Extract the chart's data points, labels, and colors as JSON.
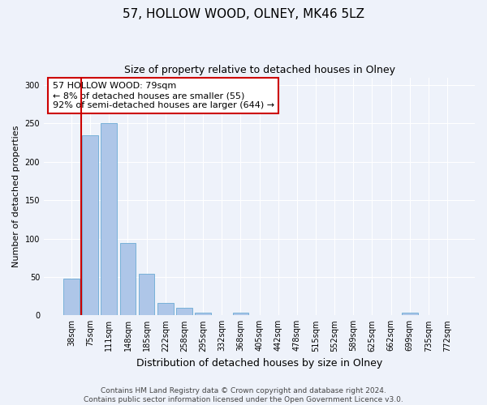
{
  "title": "57, HOLLOW WOOD, OLNEY, MK46 5LZ",
  "subtitle": "Size of property relative to detached houses in Olney",
  "xlabel": "Distribution of detached houses by size in Olney",
  "ylabel": "Number of detached properties",
  "categories": [
    "38sqm",
    "75sqm",
    "111sqm",
    "148sqm",
    "185sqm",
    "222sqm",
    "258sqm",
    "295sqm",
    "332sqm",
    "368sqm",
    "405sqm",
    "442sqm",
    "478sqm",
    "515sqm",
    "552sqm",
    "589sqm",
    "625sqm",
    "662sqm",
    "699sqm",
    "735sqm",
    "772sqm"
  ],
  "values": [
    48,
    235,
    250,
    94,
    54,
    16,
    10,
    4,
    0,
    3,
    0,
    0,
    0,
    0,
    0,
    0,
    0,
    0,
    3,
    0,
    0
  ],
  "bar_color": "#aec6e8",
  "bar_edgecolor": "#6aaad4",
  "vline_color": "#cc0000",
  "vline_x": 0.5,
  "annotation_text": "57 HOLLOW WOOD: 79sqm\n← 8% of detached houses are smaller (55)\n92% of semi-detached houses are larger (644) →",
  "annotation_box_edgecolor": "#cc0000",
  "annotation_box_facecolor": "#ffffff",
  "ylim": [
    0,
    310
  ],
  "yticks": [
    0,
    50,
    100,
    150,
    200,
    250,
    300
  ],
  "background_color": "#eef2fa",
  "footer_text": "Contains HM Land Registry data © Crown copyright and database right 2024.\nContains public sector information licensed under the Open Government Licence v3.0.",
  "title_fontsize": 11,
  "subtitle_fontsize": 9,
  "xlabel_fontsize": 9,
  "ylabel_fontsize": 8,
  "tick_fontsize": 7,
  "annotation_fontsize": 8,
  "footer_fontsize": 6.5
}
